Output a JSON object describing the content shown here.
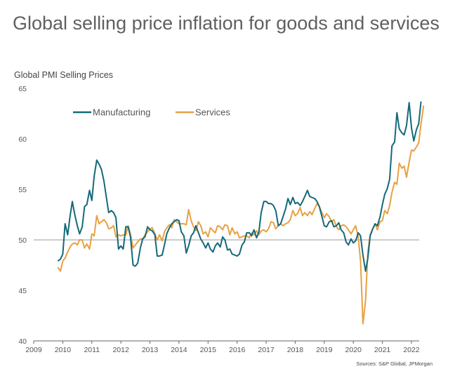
{
  "title": "Global selling price inflation for goods and services",
  "source": "Sources: S&P Global, JPMorgan",
  "chart_data": {
    "type": "line",
    "ylabel": "Global PMI Selling Prices",
    "xlabel": "",
    "ylim": [
      40,
      65
    ],
    "yticks": [
      "40",
      "45",
      "50",
      "55",
      "60",
      "65"
    ],
    "xlim": [
      2009,
      2022.75
    ],
    "xticks": [
      "2009",
      "2010",
      "2011",
      "2012",
      "2013",
      "2014",
      "2015",
      "2016",
      "2017",
      "2018",
      "2019",
      "2020",
      "2021",
      "2022"
    ],
    "reference_line": 50,
    "grid": false,
    "legend_position": "top-left",
    "series": [
      {
        "name": "Manufacturing",
        "color": "#14697a",
        "points": [
          [
            2009.83,
            47.9
          ],
          [
            2009.92,
            48.1
          ],
          [
            2010.0,
            48.6
          ],
          [
            2010.08,
            51.6
          ],
          [
            2010.17,
            50.5
          ],
          [
            2010.25,
            52.3
          ],
          [
            2010.33,
            53.8
          ],
          [
            2010.42,
            52.4
          ],
          [
            2010.5,
            51.4
          ],
          [
            2010.58,
            50.6
          ],
          [
            2010.67,
            51.3
          ],
          [
            2010.75,
            53.3
          ],
          [
            2010.83,
            53.5
          ],
          [
            2010.92,
            54.9
          ],
          [
            2011.0,
            53.9
          ],
          [
            2011.08,
            56.3
          ],
          [
            2011.17,
            57.9
          ],
          [
            2011.25,
            57.5
          ],
          [
            2011.33,
            57.0
          ],
          [
            2011.42,
            55.8
          ],
          [
            2011.5,
            54.2
          ],
          [
            2011.58,
            52.7
          ],
          [
            2011.67,
            52.9
          ],
          [
            2011.75,
            52.7
          ],
          [
            2011.83,
            52.2
          ],
          [
            2011.92,
            49.1
          ],
          [
            2012.0,
            49.4
          ],
          [
            2012.08,
            49.1
          ],
          [
            2012.17,
            51.3
          ],
          [
            2012.25,
            51.3
          ],
          [
            2012.33,
            50.3
          ],
          [
            2012.42,
            47.5
          ],
          [
            2012.5,
            47.4
          ],
          [
            2012.58,
            47.7
          ],
          [
            2012.67,
            49.2
          ],
          [
            2012.75,
            50.1
          ],
          [
            2012.83,
            50.3
          ],
          [
            2012.92,
            51.3
          ],
          [
            2013.0,
            51.0
          ],
          [
            2013.08,
            50.9
          ],
          [
            2013.17,
            50.5
          ],
          [
            2013.25,
            48.4
          ],
          [
            2013.33,
            48.4
          ],
          [
            2013.42,
            48.5
          ],
          [
            2013.5,
            49.5
          ],
          [
            2013.58,
            50.6
          ],
          [
            2013.67,
            51.2
          ],
          [
            2013.75,
            51.6
          ],
          [
            2013.83,
            51.8
          ],
          [
            2013.92,
            52.0
          ],
          [
            2014.0,
            51.9
          ],
          [
            2014.08,
            50.8
          ],
          [
            2014.17,
            50.4
          ],
          [
            2014.25,
            48.7
          ],
          [
            2014.33,
            49.4
          ],
          [
            2014.42,
            50.4
          ],
          [
            2014.5,
            50.7
          ],
          [
            2014.58,
            51.4
          ],
          [
            2014.67,
            50.7
          ],
          [
            2014.75,
            50.1
          ],
          [
            2014.83,
            49.7
          ],
          [
            2014.92,
            49.2
          ],
          [
            2015.0,
            49.7
          ],
          [
            2015.08,
            49.1
          ],
          [
            2015.17,
            48.8
          ],
          [
            2015.25,
            49.4
          ],
          [
            2015.33,
            49.7
          ],
          [
            2015.42,
            49.3
          ],
          [
            2015.5,
            50.3
          ],
          [
            2015.58,
            50.0
          ],
          [
            2015.67,
            49.0
          ],
          [
            2015.75,
            49.1
          ],
          [
            2015.83,
            48.6
          ],
          [
            2015.92,
            48.5
          ],
          [
            2016.0,
            48.4
          ],
          [
            2016.08,
            48.6
          ],
          [
            2016.17,
            49.5
          ],
          [
            2016.25,
            49.8
          ],
          [
            2016.33,
            50.7
          ],
          [
            2016.42,
            50.7
          ],
          [
            2016.5,
            50.4
          ],
          [
            2016.58,
            51.0
          ],
          [
            2016.67,
            50.2
          ],
          [
            2016.75,
            50.8
          ],
          [
            2016.83,
            52.7
          ],
          [
            2016.92,
            53.8
          ],
          [
            2017.0,
            53.8
          ],
          [
            2017.08,
            53.6
          ],
          [
            2017.17,
            53.6
          ],
          [
            2017.25,
            53.4
          ],
          [
            2017.33,
            52.9
          ],
          [
            2017.42,
            51.4
          ],
          [
            2017.5,
            51.6
          ],
          [
            2017.58,
            52.3
          ],
          [
            2017.67,
            53.1
          ],
          [
            2017.75,
            54.1
          ],
          [
            2017.83,
            53.5
          ],
          [
            2017.92,
            54.2
          ],
          [
            2018.0,
            53.6
          ],
          [
            2018.08,
            53.7
          ],
          [
            2018.17,
            53.4
          ],
          [
            2018.25,
            53.8
          ],
          [
            2018.33,
            54.3
          ],
          [
            2018.42,
            54.9
          ],
          [
            2018.5,
            54.3
          ],
          [
            2018.58,
            54.2
          ],
          [
            2018.67,
            54.1
          ],
          [
            2018.75,
            53.8
          ],
          [
            2018.83,
            53.3
          ],
          [
            2018.92,
            52.3
          ],
          [
            2019.0,
            51.4
          ],
          [
            2019.08,
            51.3
          ],
          [
            2019.17,
            51.8
          ],
          [
            2019.25,
            51.9
          ],
          [
            2019.33,
            51.3
          ],
          [
            2019.42,
            51.4
          ],
          [
            2019.5,
            51.7
          ],
          [
            2019.58,
            51.0
          ],
          [
            2019.67,
            50.7
          ],
          [
            2019.75,
            49.8
          ],
          [
            2019.83,
            49.5
          ],
          [
            2019.92,
            50.1
          ],
          [
            2020.0,
            49.7
          ],
          [
            2020.08,
            49.9
          ],
          [
            2020.17,
            50.7
          ],
          [
            2020.25,
            50.4
          ],
          [
            2020.33,
            48.5
          ],
          [
            2020.42,
            46.9
          ],
          [
            2020.5,
            48.2
          ],
          [
            2020.58,
            50.4
          ],
          [
            2020.67,
            51.1
          ],
          [
            2020.75,
            51.6
          ],
          [
            2020.83,
            51.4
          ],
          [
            2020.92,
            52.3
          ],
          [
            2021.0,
            53.5
          ],
          [
            2021.08,
            54.5
          ],
          [
            2021.17,
            55.1
          ],
          [
            2021.25,
            56.0
          ],
          [
            2021.33,
            59.3
          ],
          [
            2021.42,
            59.7
          ],
          [
            2021.5,
            62.6
          ],
          [
            2021.58,
            61.0
          ],
          [
            2021.67,
            60.6
          ],
          [
            2021.75,
            60.4
          ],
          [
            2021.83,
            61.3
          ],
          [
            2021.92,
            63.6
          ],
          [
            2022.0,
            61.1
          ],
          [
            2022.08,
            59.8
          ],
          [
            2022.17,
            60.9
          ],
          [
            2022.25,
            61.5
          ],
          [
            2022.33,
            63.7
          ]
        ]
      },
      {
        "name": "Services",
        "color": "#e7a142",
        "points": [
          [
            2009.83,
            47.3
          ],
          [
            2009.92,
            46.9
          ],
          [
            2010.0,
            47.9
          ],
          [
            2010.08,
            48.2
          ],
          [
            2010.17,
            48.8
          ],
          [
            2010.25,
            49.3
          ],
          [
            2010.33,
            49.6
          ],
          [
            2010.42,
            49.7
          ],
          [
            2010.5,
            49.5
          ],
          [
            2010.58,
            50.0
          ],
          [
            2010.67,
            50.0
          ],
          [
            2010.75,
            49.2
          ],
          [
            2010.83,
            49.6
          ],
          [
            2010.92,
            49.1
          ],
          [
            2011.0,
            50.6
          ],
          [
            2011.08,
            50.4
          ],
          [
            2011.17,
            52.4
          ],
          [
            2011.25,
            51.6
          ],
          [
            2011.33,
            51.8
          ],
          [
            2011.42,
            52.0
          ],
          [
            2011.5,
            51.7
          ],
          [
            2011.58,
            51.1
          ],
          [
            2011.67,
            51.2
          ],
          [
            2011.75,
            51.4
          ],
          [
            2011.83,
            50.3
          ],
          [
            2011.92,
            50.5
          ],
          [
            2012.0,
            50.4
          ],
          [
            2012.08,
            50.5
          ],
          [
            2012.17,
            50.5
          ],
          [
            2012.25,
            51.4
          ],
          [
            2012.33,
            50.6
          ],
          [
            2012.42,
            49.2
          ],
          [
            2012.5,
            49.5
          ],
          [
            2012.58,
            49.8
          ],
          [
            2012.67,
            50.1
          ],
          [
            2012.75,
            50.1
          ],
          [
            2012.83,
            50.5
          ],
          [
            2012.92,
            50.8
          ],
          [
            2013.0,
            51.1
          ],
          [
            2013.08,
            51.2
          ],
          [
            2013.17,
            50.6
          ],
          [
            2013.25,
            50.0
          ],
          [
            2013.33,
            50.5
          ],
          [
            2013.42,
            49.9
          ],
          [
            2013.5,
            50.8
          ],
          [
            2013.58,
            51.2
          ],
          [
            2013.67,
            51.5
          ],
          [
            2013.75,
            51.2
          ],
          [
            2013.83,
            52.0
          ],
          [
            2013.92,
            51.8
          ],
          [
            2014.0,
            51.6
          ],
          [
            2014.08,
            51.6
          ],
          [
            2014.17,
            51.6
          ],
          [
            2014.25,
            51.5
          ],
          [
            2014.33,
            53.0
          ],
          [
            2014.42,
            51.9
          ],
          [
            2014.5,
            51.3
          ],
          [
            2014.58,
            50.9
          ],
          [
            2014.67,
            51.8
          ],
          [
            2014.75,
            51.4
          ],
          [
            2014.83,
            50.6
          ],
          [
            2014.92,
            50.8
          ],
          [
            2015.0,
            50.3
          ],
          [
            2015.08,
            51.2
          ],
          [
            2015.17,
            50.9
          ],
          [
            2015.25,
            50.7
          ],
          [
            2015.33,
            51.4
          ],
          [
            2015.42,
            51.3
          ],
          [
            2015.5,
            51.0
          ],
          [
            2015.58,
            51.5
          ],
          [
            2015.67,
            51.4
          ],
          [
            2015.75,
            50.5
          ],
          [
            2015.83,
            51.2
          ],
          [
            2015.92,
            50.6
          ],
          [
            2016.0,
            50.8
          ],
          [
            2016.08,
            50.2
          ],
          [
            2016.17,
            50.3
          ],
          [
            2016.25,
            50.4
          ],
          [
            2016.33,
            50.4
          ],
          [
            2016.42,
            50.2
          ],
          [
            2016.5,
            50.7
          ],
          [
            2016.58,
            50.5
          ],
          [
            2016.67,
            50.9
          ],
          [
            2016.75,
            50.5
          ],
          [
            2016.83,
            50.9
          ],
          [
            2016.92,
            51.0
          ],
          [
            2017.0,
            50.8
          ],
          [
            2017.08,
            51.1
          ],
          [
            2017.17,
            51.8
          ],
          [
            2017.25,
            51.7
          ],
          [
            2017.33,
            51.1
          ],
          [
            2017.42,
            51.4
          ],
          [
            2017.5,
            51.6
          ],
          [
            2017.58,
            51.4
          ],
          [
            2017.67,
            51.6
          ],
          [
            2017.75,
            51.7
          ],
          [
            2017.83,
            52.0
          ],
          [
            2017.92,
            52.9
          ],
          [
            2018.0,
            52.4
          ],
          [
            2018.08,
            52.6
          ],
          [
            2018.17,
            53.2
          ],
          [
            2018.25,
            52.4
          ],
          [
            2018.33,
            52.7
          ],
          [
            2018.42,
            52.4
          ],
          [
            2018.5,
            52.8
          ],
          [
            2018.58,
            52.5
          ],
          [
            2018.67,
            53.1
          ],
          [
            2018.75,
            53.6
          ],
          [
            2018.83,
            53.3
          ],
          [
            2018.92,
            52.7
          ],
          [
            2019.0,
            52.2
          ],
          [
            2019.08,
            52.6
          ],
          [
            2019.17,
            52.3
          ],
          [
            2019.25,
            51.8
          ],
          [
            2019.33,
            52.0
          ],
          [
            2019.42,
            51.3
          ],
          [
            2019.5,
            51.0
          ],
          [
            2019.58,
            51.4
          ],
          [
            2019.67,
            51.5
          ],
          [
            2019.75,
            51.3
          ],
          [
            2019.83,
            51.0
          ],
          [
            2019.92,
            50.6
          ],
          [
            2020.0,
            51.0
          ],
          [
            2020.08,
            51.4
          ],
          [
            2020.17,
            50.3
          ],
          [
            2020.25,
            47.9
          ],
          [
            2020.33,
            41.7
          ],
          [
            2020.42,
            44.0
          ],
          [
            2020.5,
            48.8
          ],
          [
            2020.58,
            50.5
          ],
          [
            2020.67,
            51.1
          ],
          [
            2020.75,
            51.6
          ],
          [
            2020.83,
            51.0
          ],
          [
            2020.92,
            51.8
          ],
          [
            2021.0,
            51.9
          ],
          [
            2021.08,
            52.9
          ],
          [
            2021.17,
            52.6
          ],
          [
            2021.25,
            53.4
          ],
          [
            2021.33,
            54.7
          ],
          [
            2021.42,
            55.7
          ],
          [
            2021.5,
            55.5
          ],
          [
            2021.58,
            57.6
          ],
          [
            2021.67,
            57.1
          ],
          [
            2021.75,
            57.3
          ],
          [
            2021.83,
            56.2
          ],
          [
            2021.92,
            57.7
          ],
          [
            2022.0,
            58.9
          ],
          [
            2022.08,
            58.8
          ],
          [
            2022.17,
            59.2
          ],
          [
            2022.25,
            59.6
          ],
          [
            2022.33,
            61.5
          ],
          [
            2022.42,
            63.3
          ]
        ]
      }
    ]
  }
}
